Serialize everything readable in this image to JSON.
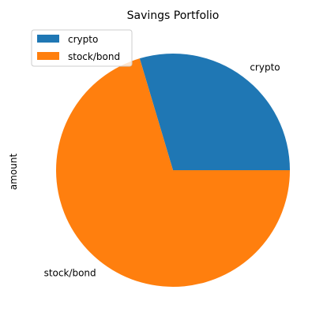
{
  "chart_data": {
    "type": "pie",
    "title": "Savings Portfolio",
    "ylabel": "amount",
    "slices": [
      {
        "label": "crypto",
        "fraction": 0.296,
        "color": "#1f77b4"
      },
      {
        "label": "stock/bond",
        "fraction": 0.704,
        "color": "#ff7f0e"
      }
    ],
    "start_angle_deg": 0,
    "direction": "counterclockwise",
    "legend": {
      "placement": "upper-left",
      "entries": [
        "crypto",
        "stock/bond"
      ]
    }
  }
}
